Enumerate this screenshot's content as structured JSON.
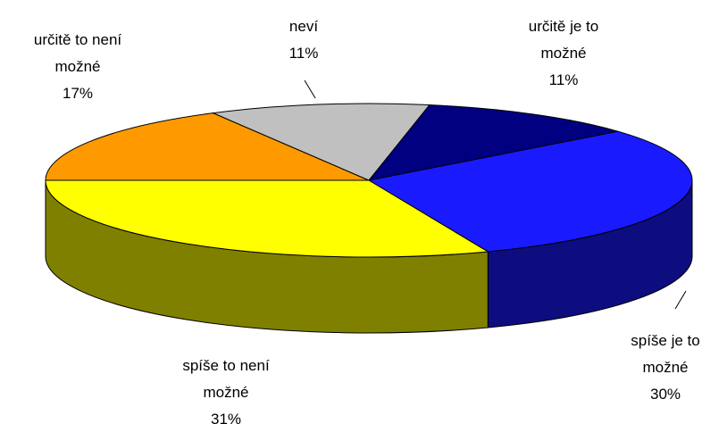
{
  "chart_data": {
    "type": "pie3d",
    "categories": [
      "určitě je to možné",
      "spíše je to možné",
      "spíše to není možné",
      "určitě to není možné",
      "neví"
    ],
    "values": [
      11,
      30,
      31,
      17,
      11
    ],
    "value_labels": [
      "11%",
      "30%",
      "31%",
      "17%",
      "11%"
    ],
    "colors": [
      "#000080",
      "#1a1aff",
      "#ffff00",
      "#ff9900",
      "#c0c0c0"
    ]
  }
}
